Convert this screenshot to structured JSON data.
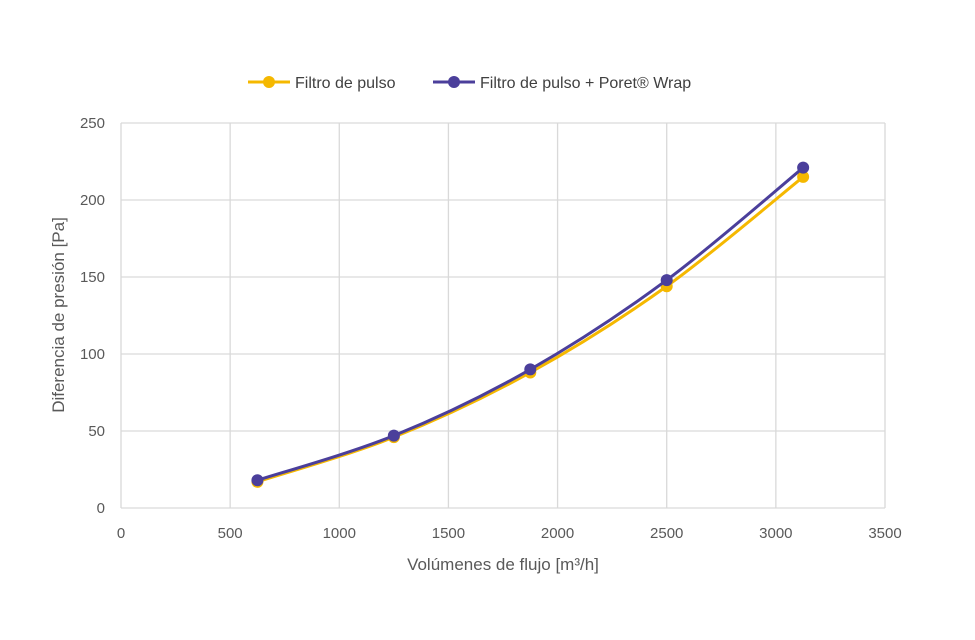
{
  "chart_data": {
    "type": "scatter",
    "title": "",
    "xlabel": "Volúmenes de flujo [m³/h]",
    "ylabel": "Diferencia de presión [Pa]",
    "xlim": [
      0,
      3500
    ],
    "ylim": [
      0,
      250
    ],
    "xticks": [
      "0",
      "500",
      "1000",
      "1500",
      "2000",
      "2500",
      "3000",
      "3500"
    ],
    "yticks": [
      "0",
      "50",
      "100",
      "150",
      "200",
      "250"
    ],
    "grid": true,
    "smooth_lines": true,
    "legend_position": "top",
    "series": [
      {
        "name": "Filtro de pulso",
        "color": "#F5B800",
        "x": [
          625,
          1250,
          1875,
          2500,
          3125
        ],
        "y": [
          17,
          46,
          88,
          144,
          215
        ]
      },
      {
        "name": "Filtro de pulso + Poret® Wrap",
        "color": "#4B3F9B",
        "x": [
          625,
          1250,
          1875,
          2500,
          3125
        ],
        "y": [
          18,
          47,
          90,
          148,
          221
        ]
      }
    ]
  }
}
